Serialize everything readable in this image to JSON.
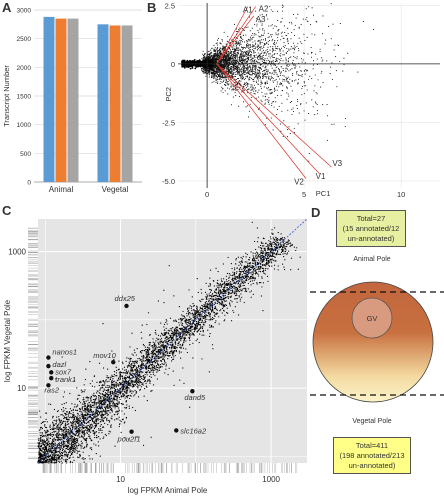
{
  "panels": {
    "a": "A",
    "b": "B",
    "c": "C",
    "d": "D"
  },
  "chart_data": [
    {
      "type": "bar",
      "panel": "A",
      "ylabel": "Transcript Number",
      "categories": [
        "Animal",
        "Vegetal"
      ],
      "ylim": [
        0,
        3000
      ],
      "yticks": [
        "0",
        "500",
        "1000",
        "1500",
        "2000",
        "2500",
        "3000"
      ],
      "series": [
        {
          "values": [
            2880,
            2750
          ],
          "color": "#5b9bd5"
        },
        {
          "values": [
            2850,
            2730
          ],
          "color": "#ed7d31"
        },
        {
          "values": [
            2850,
            2730
          ],
          "color": "#a5a5a5"
        }
      ]
    },
    {
      "type": "scatter",
      "panel": "B",
      "xlabel": "PC1",
      "ylabel": "PC2",
      "xlim": [
        -1.5,
        12
      ],
      "ylim": [
        -5.3,
        2.6
      ],
      "xticks": [
        "0",
        "5",
        "10"
      ],
      "yticks": [
        "2.5",
        "0",
        "-2.5",
        "-5.0"
      ],
      "loadings": [
        {
          "label": "A1",
          "x": 2.1,
          "y": 2.45
        },
        {
          "label": "A2",
          "x": 2.5,
          "y": 2.45
        },
        {
          "label": "A3",
          "x": 2.4,
          "y": 2.05
        },
        {
          "label": "V1",
          "x": 5.8,
          "y": -4.7
        },
        {
          "label": "V2",
          "x": 5.1,
          "y": -4.9
        },
        {
          "label": "V3",
          "x": 6.4,
          "y": -4.4
        }
      ],
      "points_description": "dense cloud centered near origin"
    },
    {
      "type": "scatter",
      "panel": "C",
      "xlabel": "log FPKM Animal Pole",
      "ylabel": "log FPKM Vegetal Pole",
      "scale": "log",
      "xlim": [
        0.8,
        3000
      ],
      "ylim": [
        0.8,
        3000
      ],
      "xticks": [
        "10",
        "1000"
      ],
      "yticks": [
        "10",
        "1000"
      ],
      "genes": [
        {
          "label": "ddx25",
          "x": 12,
          "y": 160
        },
        {
          "label": "nanos1",
          "x": 1.1,
          "y": 28
        },
        {
          "label": "dazl",
          "x": 1.1,
          "y": 21
        },
        {
          "label": "sox7",
          "x": 1.2,
          "y": 17
        },
        {
          "label": "trank1",
          "x": 1.2,
          "y": 14
        },
        {
          "label": "ras2",
          "x": 1.1,
          "y": 11
        },
        {
          "label": "mov10",
          "x": 8,
          "y": 24
        },
        {
          "label": "dand5",
          "x": 90,
          "y": 9
        },
        {
          "label": "pou2f1",
          "x": 14,
          "y": 2.3
        },
        {
          "label": "slc16a2",
          "x": 55,
          "y": 2.4
        }
      ]
    }
  ],
  "diagram": {
    "top_box": [
      "Total=27",
      "(15 annotated/12",
      "un-annotated)"
    ],
    "animal_pole": "Animal Pole",
    "gv": "GV",
    "vegetal_pole": "Vegetal Pole",
    "bottom_box": [
      "Total=411",
      "(198 annotated/213",
      "un-annotated)"
    ],
    "box_color": "#e6f0a0",
    "egg_top_color": "#c2663f",
    "egg_bottom_color": "#fbefc0"
  }
}
